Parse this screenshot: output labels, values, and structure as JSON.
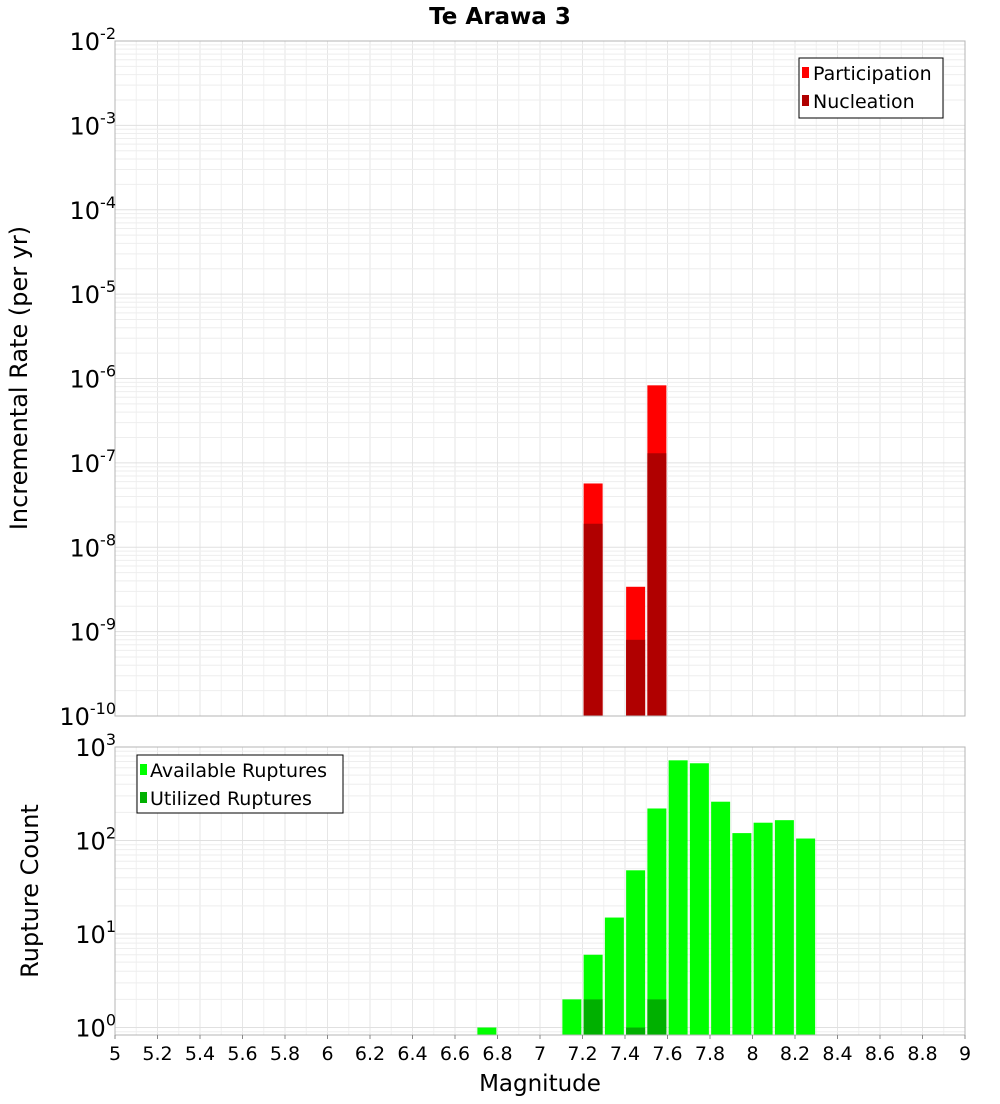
{
  "chart_data": [
    {
      "type": "bar",
      "title": "Te Arawa 3",
      "xlabel": "Magnitude",
      "ylabel": "Incremental Rate (per yr)",
      "xlim": [
        5,
        9
      ],
      "ylim_exponent": [
        -10,
        -2
      ],
      "ytick_exponents": [
        "-10",
        "-9",
        "-8",
        "-7",
        "-6",
        "-5",
        "-4",
        "-3",
        "-2"
      ],
      "legend_position": "top-right",
      "grid": true,
      "series": [
        {
          "name": "Participation",
          "color": "#ff0000",
          "x": [
            7.25,
            7.45,
            7.55
          ],
          "values": [
            5.7e-08,
            3.4e-09,
            8.3e-07
          ]
        },
        {
          "name": "Nucleation",
          "color": "#b00000",
          "x": [
            7.25,
            7.45,
            7.55
          ],
          "values": [
            1.9e-08,
            8e-10,
            1.3e-07
          ]
        }
      ]
    },
    {
      "type": "bar",
      "title": "",
      "xlabel": "Magnitude",
      "ylabel": "Rupture Count",
      "xlim": [
        5,
        9
      ],
      "ylim_exponent": [
        -0.08,
        3
      ],
      "ytick_exponents": [
        "0",
        "1",
        "2",
        "3"
      ],
      "legend_position": "top-left",
      "grid": true,
      "series": [
        {
          "name": "Available Ruptures",
          "color": "#00ff00",
          "x": [
            6.75,
            7.15,
            7.25,
            7.35,
            7.45,
            7.55,
            7.65,
            7.75,
            7.85,
            7.95,
            8.05,
            8.15,
            8.25
          ],
          "values": [
            1,
            2,
            6,
            15,
            48,
            220,
            720,
            670,
            260,
            120,
            155,
            165,
            105
          ]
        },
        {
          "name": "Utilized Ruptures",
          "color": "#00b000",
          "x": [
            7.25,
            7.45,
            7.55
          ],
          "values": [
            2,
            1,
            2
          ]
        }
      ]
    }
  ],
  "x_ticks": [
    "5",
    "5.2",
    "5.4",
    "5.6",
    "5.8",
    "6",
    "6.2",
    "6.4",
    "6.6",
    "6.8",
    "7",
    "7.2",
    "7.4",
    "7.6",
    "7.8",
    "8",
    "8.2",
    "8.4",
    "8.6",
    "8.8",
    "9"
  ]
}
